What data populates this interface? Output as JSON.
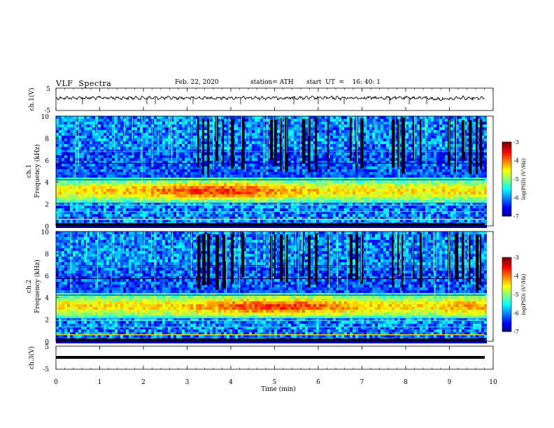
{
  "header": {
    "title": "VLF  Spectra",
    "date": "Feb. 22, 2020",
    "station": "station= ATH",
    "start": "start  UT  =    16: 40: 1"
  },
  "chart_data": [
    {
      "type": "line",
      "ylabel": "ch.1(V)",
      "ylim": [
        -5,
        5
      ],
      "yticks": [
        "5",
        "-5"
      ],
      "series": [
        {
          "values": "noisy waveform around 0.5 V",
          "color": "#000000"
        }
      ]
    },
    {
      "type": "heatmap",
      "ylabel": "ch.1\nFrequency (kHz)",
      "ylim": [
        0,
        10
      ],
      "yticks": [
        "0",
        "2",
        "4",
        "6",
        "8",
        "10"
      ],
      "xlim": [
        0,
        10
      ],
      "colorbar": {
        "label": "log(PSD) (V²/Hz)",
        "ticks": [
          "-3",
          "-4",
          "-5",
          "-6",
          "-7"
        ],
        "range": [
          -7,
          -3
        ]
      },
      "bands": [
        {
          "freq_khz": [
            2.2,
            4.4
          ],
          "log_psd": -4.8
        },
        {
          "freq_khz": [
            4.4,
            5.0
          ],
          "log_psd": -6.0
        },
        {
          "freq_khz": [
            5.0,
            10.0
          ],
          "log_psd": -6.3
        },
        {
          "freq_khz": [
            0.3,
            2.2
          ],
          "log_psd": -6.0
        }
      ]
    },
    {
      "type": "heatmap",
      "ylabel": "ch.2\nFrequency (kHz)",
      "ylim": [
        0,
        10
      ],
      "yticks": [
        "0",
        "2",
        "4",
        "6",
        "8",
        "10"
      ],
      "xlim": [
        0,
        10
      ],
      "colorbar": {
        "label": "log(PSD) (V²/Hz)",
        "ticks": [
          "-3",
          "-4",
          "-5",
          "-6",
          "-7"
        ],
        "range": [
          -7,
          -3
        ]
      },
      "bands": [
        {
          "freq_khz": [
            2.2,
            4.4
          ],
          "log_psd": -4.4
        },
        {
          "freq_khz": [
            4.4,
            5.0
          ],
          "log_psd": -6.0
        },
        {
          "freq_khz": [
            5.0,
            10.0
          ],
          "log_psd": -6.3
        },
        {
          "freq_khz": [
            0.3,
            2.2
          ],
          "log_psd": -5.9
        }
      ]
    },
    {
      "type": "line",
      "ylabel": "ch.3(V)",
      "ylim": [
        -5,
        5
      ],
      "yticks": [
        "5",
        "-5"
      ],
      "xlabel": "Time  (min)",
      "xticks": [
        "0",
        "1",
        "2",
        "3",
        "4",
        "5",
        "6",
        "7",
        "8",
        "9",
        "10"
      ],
      "series": [
        {
          "values": "flat at about -1.5 V",
          "color": "#000000"
        }
      ]
    }
  ]
}
